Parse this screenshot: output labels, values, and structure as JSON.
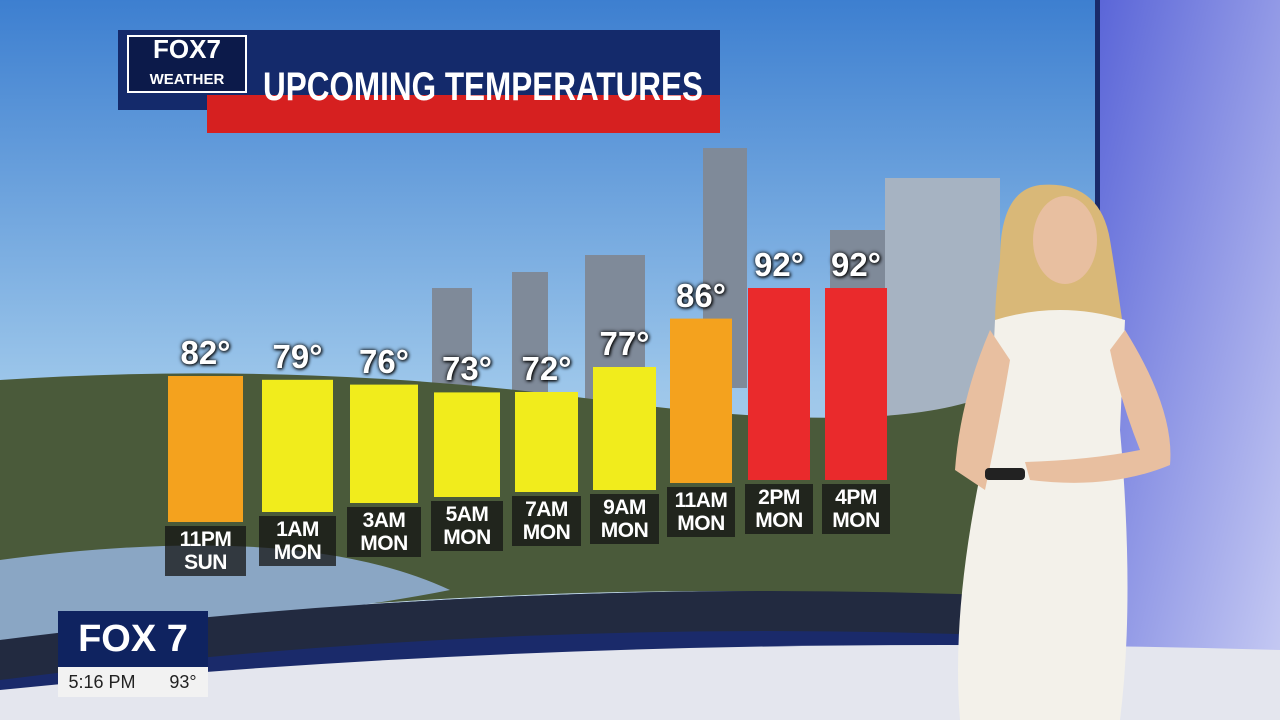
{
  "chart_data": {
    "type": "bar",
    "logo": [
      "FOX7",
      "WEATHER"
    ],
    "title": "UPCOMING TEMPERATURES",
    "categories": [
      "11PM\nSUN",
      "1AM\nMON",
      "3AM\nMON",
      "5AM\nMON",
      "7AM\nMON",
      "9AM\nMON",
      "11AM\nMON",
      "2PM\nMON",
      "4PM\nMON"
    ],
    "values": [
      82,
      79,
      76,
      73,
      72,
      77,
      86,
      92,
      92
    ],
    "value_labels": [
      "82°",
      "79°",
      "76°",
      "73°",
      "72°",
      "77°",
      "86°",
      "92°",
      "92°"
    ],
    "colors": [
      "#f4a21e",
      "#f1ec1c",
      "#f1ec1c",
      "#f1ec1c",
      "#f1ec1c",
      "#f1ec1c",
      "#f4a21e",
      "#ea2a2c",
      "#ea2a2c"
    ]
  },
  "lower_third": {
    "station": "FOX 7",
    "time": "5:16 PM",
    "temperature": "93°"
  }
}
